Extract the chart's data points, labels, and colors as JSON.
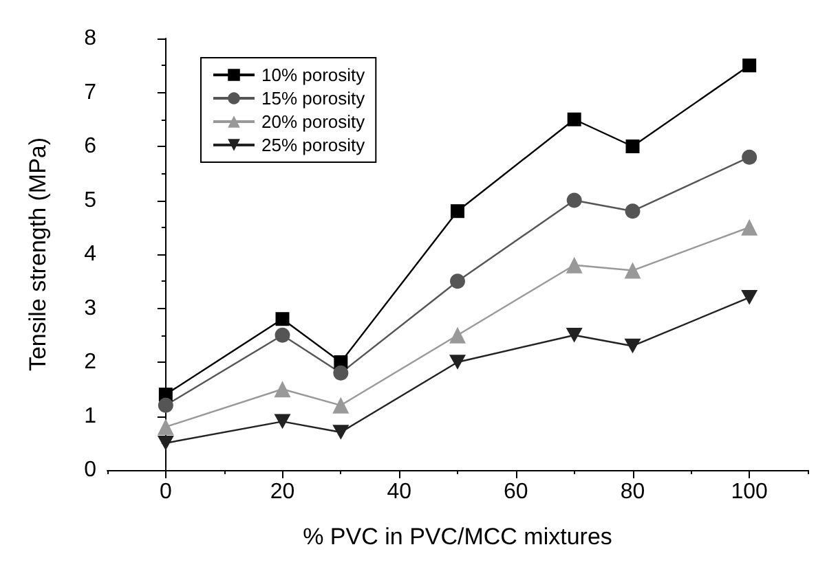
{
  "chart_data": {
    "type": "line",
    "xlabel": "% PVC in PVC/MCC mixtures",
    "ylabel": "Tensile strength (MPa)",
    "x": [
      0,
      20,
      30,
      50,
      70,
      80,
      100
    ],
    "series": [
      {
        "name": "10% porosity",
        "color": "#000000",
        "marker": "square",
        "values": [
          1.4,
          2.8,
          2.0,
          4.8,
          6.5,
          6.0,
          7.5
        ]
      },
      {
        "name": "15% porosity",
        "color": "#555555",
        "marker": "circle",
        "values": [
          1.2,
          2.5,
          1.8,
          3.5,
          5.0,
          4.8,
          5.8
        ]
      },
      {
        "name": "20% porosity",
        "color": "#999999",
        "marker": "triangle",
        "values": [
          0.8,
          1.5,
          1.2,
          2.5,
          3.8,
          3.7,
          4.5
        ]
      },
      {
        "name": "25% porosity",
        "color": "#222222",
        "marker": "triangle-down",
        "values": [
          0.5,
          0.9,
          0.7,
          2.0,
          2.5,
          2.3,
          3.2
        ]
      }
    ],
    "xlim": [
      -10,
      110
    ],
    "xticks": [
      0,
      20,
      40,
      60,
      80,
      100
    ],
    "ylim": [
      0,
      8
    ],
    "yticks": [
      0,
      1,
      2,
      3,
      4,
      5,
      6,
      7,
      8
    ],
    "legend": "top left",
    "line_style": "solid"
  }
}
